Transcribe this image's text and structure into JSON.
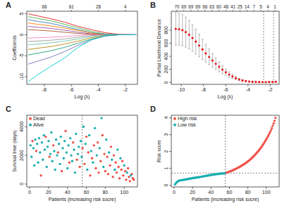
{
  "chart_data": [
    {
      "type": "line",
      "title": "A",
      "xlabel": "Log (λ)",
      "ylabel": "Coefficients",
      "x": [
        -9.2,
        -8.5,
        -7.5,
        -6.5,
        -5.5,
        -4.5,
        -3.5,
        -2.5,
        -1.2
      ],
      "xlim": [
        -9.3,
        -1.1
      ],
      "ylim": [
        -11.8,
        5.6
      ],
      "xticks": [
        -8,
        -6,
        -4,
        -2
      ],
      "yticks": [
        -10,
        -5,
        0,
        5
      ],
      "x2ticks": [
        {
          "value": -8,
          "label": "66"
        },
        {
          "value": -6,
          "label": "61"
        },
        {
          "value": -4,
          "label": "28"
        },
        {
          "value": -2,
          "label": "4"
        }
      ],
      "series": [
        {
          "color": "#E41A1C",
          "values": [
            5.0,
            4.5,
            3.8,
            3.0,
            2.0,
            1.2,
            0.5,
            0.1,
            0
          ]
        },
        {
          "color": "#4DAF4A",
          "values": [
            4.3,
            3.9,
            3.3,
            2.5,
            1.6,
            0.8,
            0.2,
            0,
            0
          ]
        },
        {
          "color": "#377EB8",
          "values": [
            3.6,
            3.2,
            2.7,
            2.0,
            1.2,
            0.5,
            0.1,
            0,
            0
          ]
        },
        {
          "color": "#FF7F00",
          "values": [
            2.8,
            2.5,
            2.1,
            1.6,
            1.0,
            0.4,
            0,
            0,
            0
          ]
        },
        {
          "color": "#984EA3",
          "values": [
            2.0,
            1.8,
            1.5,
            1.1,
            0.6,
            0.2,
            0,
            0,
            0
          ]
        },
        {
          "color": "#A65628",
          "values": [
            1.2,
            1.1,
            0.9,
            0.6,
            0.3,
            0.1,
            0,
            0,
            0
          ]
        },
        {
          "color": "#F781BF",
          "values": [
            -0.8,
            -0.7,
            -0.6,
            -0.4,
            -0.2,
            0,
            0,
            0,
            0
          ]
        },
        {
          "color": "#999999",
          "values": [
            -1.6,
            -1.5,
            -1.3,
            -1.0,
            -0.6,
            -0.2,
            0,
            0,
            0
          ]
        },
        {
          "color": "#66C2A5",
          "values": [
            -2.4,
            -2.2,
            -1.9,
            -1.5,
            -1.0,
            -0.4,
            -0.1,
            0,
            0
          ]
        },
        {
          "color": "#B8860B",
          "values": [
            -3.5,
            -3.2,
            -2.8,
            -2.2,
            -1.5,
            -0.7,
            -0.2,
            0,
            0
          ]
        },
        {
          "color": "#1B9E77",
          "values": [
            -4.8,
            -4.4,
            -3.8,
            -3.0,
            -2.0,
            -1.0,
            -0.3,
            0,
            0
          ]
        },
        {
          "color": "#7570B3",
          "values": [
            -7.0,
            -6.3,
            -5.3,
            -4.0,
            -2.5,
            -1.2,
            -0.3,
            0,
            0
          ]
        },
        {
          "color": "#00CED1",
          "values": [
            -11.2,
            -9.5,
            -7.5,
            -5.5,
            -3.0,
            -1.2,
            -0.2,
            0,
            0
          ]
        }
      ]
    },
    {
      "type": "scatter",
      "title": "B",
      "xlabel": "Log (λ)",
      "ylabel": "Partial Likelihood Deviance",
      "color": "#E41A1C",
      "x": [
        -10.5,
        -10.2,
        -9.9,
        -9.6,
        -9.3,
        -9.0,
        -8.7,
        -8.4,
        -8.1,
        -7.8,
        -7.5,
        -7.2,
        -6.9,
        -6.6,
        -6.3,
        -6.0,
        -5.7,
        -5.4,
        -5.1,
        -4.8,
        -4.5,
        -4.2,
        -3.9,
        -3.6,
        -3.3,
        -3.0,
        -2.7,
        -2.4,
        -2.1,
        -1.8,
        -1.5
      ],
      "values": [
        820,
        815,
        800,
        770,
        730,
        680,
        625,
        565,
        505,
        445,
        390,
        335,
        285,
        238,
        195,
        155,
        120,
        90,
        65,
        45,
        30,
        20,
        13,
        9,
        7,
        6,
        5,
        5,
        6,
        7,
        8
      ],
      "errors": [
        250,
        245,
        240,
        230,
        218,
        205,
        190,
        172,
        155,
        138,
        120,
        104,
        90,
        76,
        64,
        52,
        42,
        33,
        25,
        18,
        13,
        9,
        7,
        5,
        4,
        4,
        3,
        3,
        3,
        4,
        4
      ],
      "xlim": [
        -10.9,
        -1.2
      ],
      "ylim": [
        -30,
        1090
      ],
      "xticks": [
        -10,
        -8,
        -6,
        -4,
        -2
      ],
      "yticks": [
        0,
        200,
        400,
        600,
        800
      ],
      "x2ticks": [
        {
          "value": -10.4,
          "label": "70"
        },
        {
          "value": -9.77,
          "label": "69"
        },
        {
          "value": -9.14,
          "label": "69"
        },
        {
          "value": -8.51,
          "label": "69"
        },
        {
          "value": -7.88,
          "label": "66"
        },
        {
          "value": -7.25,
          "label": "63"
        },
        {
          "value": -6.62,
          "label": "60"
        },
        {
          "value": -5.99,
          "label": "48"
        },
        {
          "value": -5.36,
          "label": "41"
        },
        {
          "value": -4.73,
          "label": "25"
        },
        {
          "value": -4.1,
          "label": "14"
        },
        {
          "value": -3.47,
          "label": "7"
        },
        {
          "value": -2.84,
          "label": "5"
        },
        {
          "value": -2.21,
          "label": "4"
        },
        {
          "value": -1.58,
          "label": "1"
        }
      ],
      "vlines": [
        -2.6,
        -1.7
      ]
    },
    {
      "type": "scatter",
      "title": "C",
      "xlabel": "Patients (increasing risk socre)",
      "ylabel": "Survival time (days)",
      "xlim": [
        -3,
        114
      ],
      "ylim": [
        -200,
        4800
      ],
      "xticks": [
        0,
        20,
        40,
        60,
        80,
        100
      ],
      "yticks": [
        0,
        2000,
        4000
      ],
      "legend": "top-left",
      "vlines": [
        55.5
      ],
      "series": [
        {
          "name": "Dead",
          "color": "#F0524B",
          "x": [
            3,
            7,
            12,
            17,
            21,
            25,
            30,
            34,
            38,
            42,
            46,
            50,
            53,
            56,
            58,
            60,
            62,
            64,
            66,
            68,
            70,
            72,
            73,
            75,
            77,
            79,
            80,
            82,
            83,
            85,
            86,
            88,
            89,
            91,
            92,
            94,
            95,
            97,
            98,
            99,
            101,
            102,
            104,
            105,
            106,
            108,
            109,
            110
          ],
          "values": [
            3000,
            2300,
            600,
            3300,
            1900,
            2700,
            2200,
            900,
            3700,
            1500,
            2900,
            1700,
            1200,
            2500,
            1400,
            3300,
            2200,
            600,
            1800,
            2700,
            1100,
            2900,
            800,
            1600,
            3400,
            2100,
            900,
            1900,
            700,
            1300,
            2600,
            500,
            2000,
            1500,
            800,
            1200,
            400,
            1000,
            1600,
            600,
            900,
            300,
            1100,
            500,
            200,
            700,
            400,
            300
          ]
        },
        {
          "name": "Alive",
          "color": "#1AAFB0",
          "x": [
            1,
            2,
            4,
            5,
            6,
            8,
            9,
            10,
            11,
            13,
            14,
            15,
            16,
            18,
            19,
            20,
            22,
            23,
            24,
            26,
            27,
            28,
            29,
            31,
            32,
            33,
            35,
            36,
            37,
            39,
            40,
            41,
            43,
            44,
            45,
            47,
            48,
            49,
            51,
            52,
            54,
            55,
            57,
            59,
            61,
            63,
            65,
            67,
            69,
            71,
            74,
            76,
            78,
            81,
            84,
            87,
            90,
            93,
            96,
            100,
            103,
            107
          ],
          "values": [
            2700,
            1900,
            2500,
            1300,
            3100,
            2800,
            1500,
            3200,
            2200,
            2900,
            1700,
            3400,
            2400,
            1200,
            2600,
            3000,
            2100,
            3600,
            1600,
            2300,
            1000,
            3100,
            2000,
            2800,
            1400,
            3300,
            2500,
            1800,
            3000,
            2200,
            1100,
            2700,
            3200,
            2000,
            1600,
            2400,
            800,
            3500,
            2100,
            2600,
            3000,
            1900,
            4000,
            2800,
            1000,
            3400,
            2300,
            1500,
            3900,
            2000,
            2500,
            4600,
            1200,
            3100,
            2200,
            1700,
            1000,
            2400,
            1800,
            1300,
            800,
            600
          ]
        }
      ]
    },
    {
      "type": "scatter",
      "title": "D",
      "xlabel": "Patients (increasing risk socre)",
      "ylabel": "Risk score",
      "xlim": [
        -3,
        114
      ],
      "ylim": [
        -0.1,
        4.15
      ],
      "xticks": [
        0,
        20,
        40,
        60,
        80,
        100
      ],
      "yticks": [
        0,
        1,
        2,
        3,
        4
      ],
      "legend": "top-left",
      "vlines": [
        55.5
      ],
      "hlines": [
        0.72
      ],
      "series": [
        {
          "name": "High risk",
          "color": "#F0524B",
          "x": [
            56,
            57,
            58,
            59,
            60,
            61,
            62,
            63,
            64,
            65,
            66,
            67,
            68,
            69,
            70,
            71,
            72,
            73,
            74,
            75,
            76,
            77,
            78,
            79,
            80,
            81,
            82,
            83,
            84,
            85,
            86,
            87,
            88,
            89,
            90,
            91,
            92,
            93,
            94,
            95,
            96,
            97,
            98,
            99,
            100,
            101,
            102,
            103,
            104,
            105,
            106,
            107,
            108,
            109,
            110
          ],
          "values": [
            0.73,
            0.75,
            0.77,
            0.79,
            0.81,
            0.83,
            0.85,
            0.87,
            0.9,
            0.92,
            0.95,
            0.97,
            1.0,
            1.03,
            1.06,
            1.09,
            1.12,
            1.15,
            1.18,
            1.22,
            1.25,
            1.29,
            1.33,
            1.37,
            1.41,
            1.45,
            1.5,
            1.55,
            1.6,
            1.65,
            1.7,
            1.76,
            1.82,
            1.88,
            1.94,
            2.0,
            2.07,
            2.14,
            2.21,
            2.29,
            2.37,
            2.45,
            2.54,
            2.63,
            2.72,
            2.82,
            2.92,
            3.02,
            3.13,
            3.25,
            3.38,
            3.52,
            3.66,
            3.82,
            4.0
          ]
        },
        {
          "name": "Low risk",
          "color": "#1AAFB0",
          "x": [
            1,
            2,
            3,
            4,
            5,
            6,
            7,
            8,
            9,
            10,
            11,
            12,
            13,
            14,
            15,
            16,
            17,
            18,
            19,
            20,
            21,
            22,
            23,
            24,
            25,
            26,
            27,
            28,
            29,
            30,
            31,
            32,
            33,
            34,
            35,
            36,
            37,
            38,
            39,
            40,
            41,
            42,
            43,
            44,
            45,
            46,
            47,
            48,
            49,
            50,
            51,
            52,
            53,
            54,
            55
          ],
          "values": [
            0.05,
            0.12,
            0.18,
            0.22,
            0.26,
            0.28,
            0.29,
            0.3,
            0.31,
            0.32,
            0.33,
            0.34,
            0.35,
            0.36,
            0.37,
            0.38,
            0.39,
            0.4,
            0.41,
            0.42,
            0.43,
            0.44,
            0.44,
            0.45,
            0.46,
            0.47,
            0.48,
            0.49,
            0.5,
            0.51,
            0.52,
            0.53,
            0.54,
            0.55,
            0.56,
            0.57,
            0.58,
            0.59,
            0.6,
            0.61,
            0.62,
            0.63,
            0.63,
            0.64,
            0.65,
            0.66,
            0.66,
            0.67,
            0.68,
            0.68,
            0.69,
            0.69,
            0.7,
            0.7,
            0.71
          ]
        }
      ]
    }
  ]
}
